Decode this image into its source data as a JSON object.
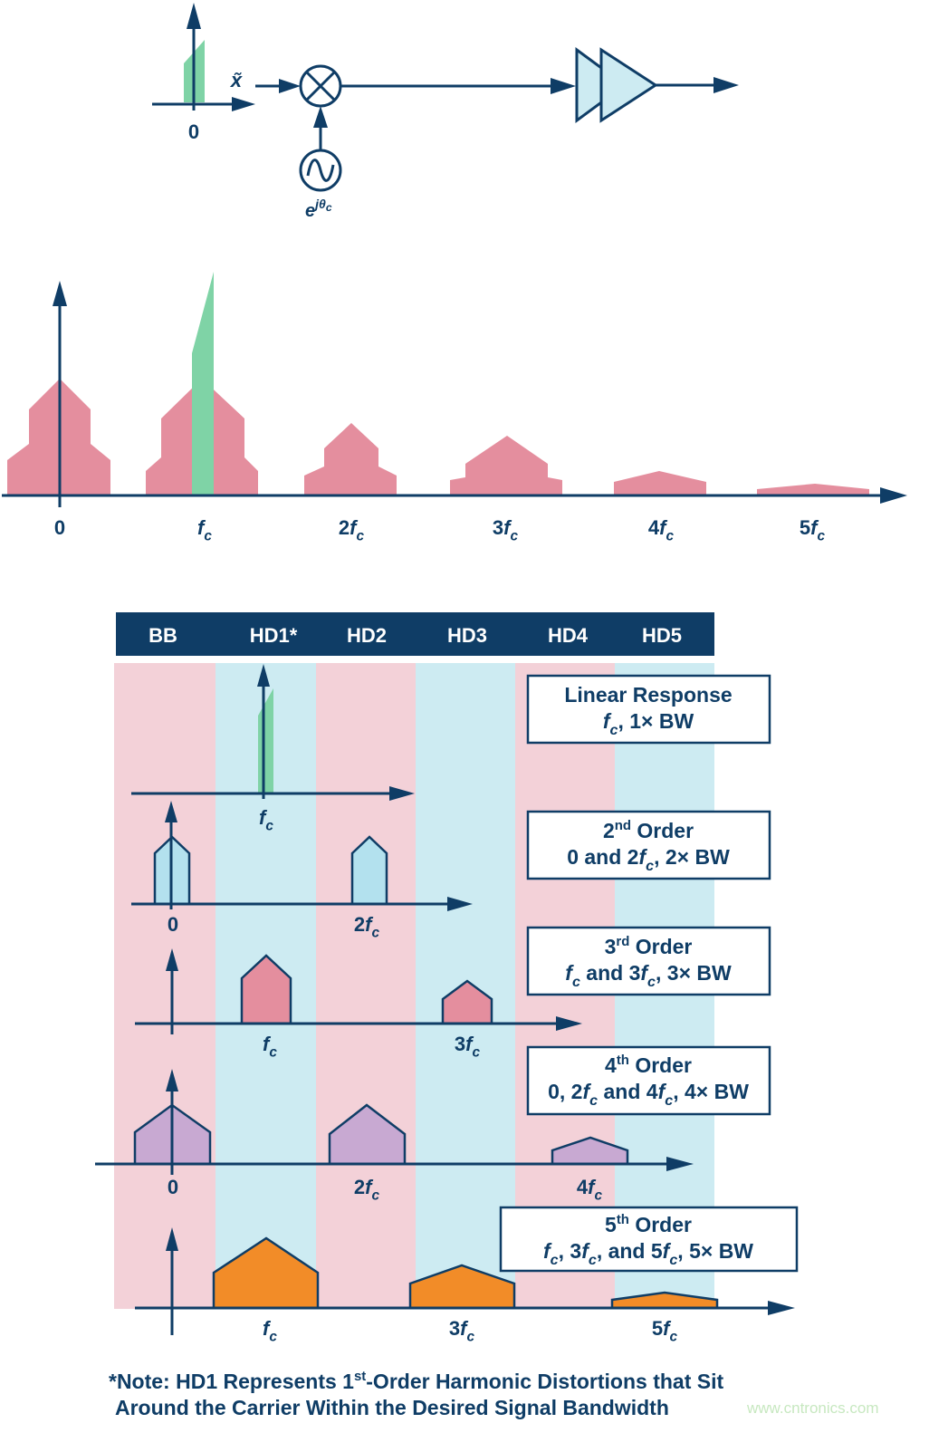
{
  "colors": {
    "navy": "#0f3d66",
    "pink": "#e48e9e",
    "green": "#7fd3a6",
    "band_pink": "#f3d1d8",
    "band_blue": "#cdebf2",
    "light_blue": "#b3e1ee",
    "purple": "#c8a9d2",
    "orange": "#f28c28"
  },
  "block_diagram": {
    "input_axis_label": "0",
    "input_symbol": "x̃",
    "mixer_icon": "multiplier-circle-x",
    "oscillator_icon": "sine-source",
    "oscillator_label": [
      [
        "e"
      ],
      [
        "jθ",
        "sup-i"
      ],
      [
        "c",
        "supsub-i"
      ]
    ],
    "amplifier_icon": "double-triangle-amplifier"
  },
  "spectrum": {
    "labels": [
      [
        [
          "0"
        ]
      ],
      [
        [
          "f",
          "i"
        ],
        [
          "c",
          "sub"
        ]
      ],
      [
        [
          "2"
        ],
        [
          "f",
          "i"
        ],
        [
          "c",
          "sub"
        ]
      ],
      [
        [
          "3"
        ],
        [
          "f",
          "i"
        ],
        [
          "c",
          "sub"
        ]
      ],
      [
        [
          "4"
        ],
        [
          "f",
          "i"
        ],
        [
          "c",
          "sub"
        ]
      ],
      [
        [
          "5"
        ],
        [
          "f",
          "i"
        ],
        [
          "c",
          "sub"
        ]
      ]
    ]
  },
  "table": {
    "headers": [
      "BB",
      "HD1*",
      "HD2",
      "HD3",
      "HD4",
      "HD5"
    ],
    "rows": [
      {
        "title": [
          [
            "Linear Response"
          ]
        ],
        "desc": [
          [
            "f",
            "i"
          ],
          [
            "c",
            "sub"
          ],
          [
            ", 1× BW"
          ]
        ],
        "labels": [
          [
            [
              "f",
              "i"
            ],
            [
              "c",
              "sub"
            ]
          ]
        ]
      },
      {
        "title": [
          [
            "2"
          ],
          [
            "nd",
            "sup"
          ],
          [
            " Order"
          ]
        ],
        "desc": [
          [
            "0 and 2"
          ],
          [
            "f",
            "i"
          ],
          [
            "c",
            "sub"
          ],
          [
            ", 2× BW"
          ]
        ],
        "labels": [
          [
            [
              "0"
            ]
          ],
          [
            [
              "2"
            ],
            [
              "f",
              "i"
            ],
            [
              "c",
              "sub"
            ]
          ]
        ]
      },
      {
        "title": [
          [
            "3"
          ],
          [
            "rd",
            "sup"
          ],
          [
            " Order"
          ]
        ],
        "desc": [
          [
            "f",
            "i"
          ],
          [
            "c",
            "sub"
          ],
          [
            " and 3"
          ],
          [
            "f",
            "i"
          ],
          [
            "c",
            "sub"
          ],
          [
            ", 3× BW"
          ]
        ],
        "labels": [
          [
            [
              "f",
              "i"
            ],
            [
              "c",
              "sub"
            ]
          ],
          [
            [
              "3"
            ],
            [
              "f",
              "i"
            ],
            [
              "c",
              "sub"
            ]
          ]
        ]
      },
      {
        "title": [
          [
            "4"
          ],
          [
            "th",
            "sup"
          ],
          [
            " Order"
          ]
        ],
        "desc": [
          [
            "0, 2"
          ],
          [
            "f",
            "i"
          ],
          [
            "c",
            "sub"
          ],
          [
            " and 4"
          ],
          [
            "f",
            "i"
          ],
          [
            "c",
            "sub"
          ],
          [
            ", 4× BW"
          ]
        ],
        "labels": [
          [
            [
              "0"
            ]
          ],
          [
            [
              "2"
            ],
            [
              "f",
              "i"
            ],
            [
              "c",
              "sub"
            ]
          ],
          [
            [
              "4"
            ],
            [
              "f",
              "i"
            ],
            [
              "c",
              "sub"
            ]
          ]
        ]
      },
      {
        "title": [
          [
            "5"
          ],
          [
            "th",
            "sup"
          ],
          [
            " Order"
          ]
        ],
        "desc": [
          [
            "f",
            "i"
          ],
          [
            "c",
            "sub"
          ],
          [
            ", 3"
          ],
          [
            "f",
            "i"
          ],
          [
            "c",
            "sub"
          ],
          [
            ", and 5"
          ],
          [
            "f",
            "i"
          ],
          [
            "c",
            "sub"
          ],
          [
            ", 5× BW"
          ]
        ],
        "labels": [
          [
            [
              "f",
              "i"
            ],
            [
              "c",
              "sub"
            ]
          ],
          [
            [
              "3"
            ],
            [
              "f",
              "i"
            ],
            [
              "c",
              "sub"
            ]
          ],
          [
            [
              "5"
            ],
            [
              "f",
              "i"
            ],
            [
              "c",
              "sub"
            ]
          ]
        ]
      }
    ]
  },
  "note": {
    "line1": [
      [
        "*Note: HD1 Represents 1"
      ],
      [
        "st",
        "sup"
      ],
      [
        "-Order Harmonic Distortions that Sit"
      ]
    ],
    "line2": [
      [
        "Around the Carrier Within the Desired Signal Bandwidth"
      ]
    ]
  },
  "watermark": "www.cntronics.com"
}
